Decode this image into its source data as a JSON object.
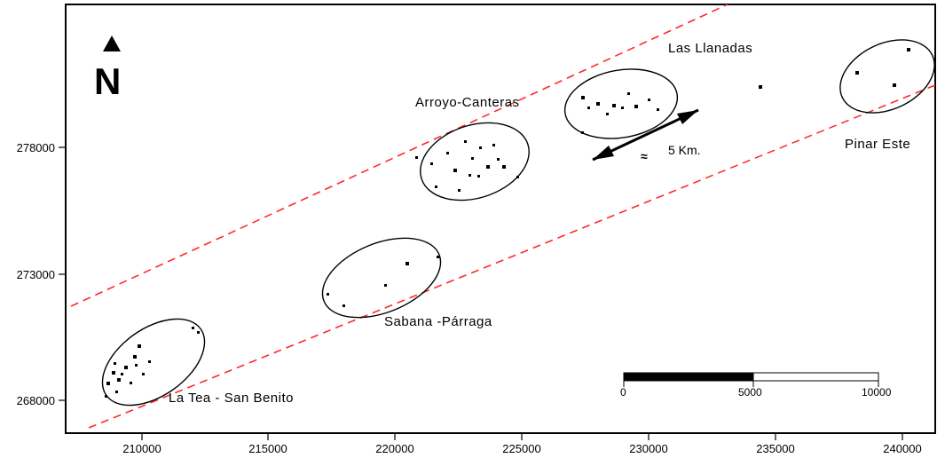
{
  "map": {
    "x_ticks": [
      "210000",
      "215000",
      "220000",
      "225000",
      "230000",
      "235000",
      "240000"
    ],
    "y_ticks": [
      "278000",
      "273000",
      "268000"
    ],
    "north_arrow": {
      "label": "N",
      "icon": "north-arrow-icon"
    },
    "sites": [
      {
        "name": "Las Llanadas"
      },
      {
        "name": "Arroyo-Canteras"
      },
      {
        "name": "Pinar Este"
      },
      {
        "name": "Sabana -Párraga"
      },
      {
        "name": "La Tea - San Benito"
      }
    ],
    "distance_marker": {
      "symbol": "≈",
      "label": "5 Km."
    },
    "scale_bar": {
      "labels": [
        "0",
        "5000",
        "10000"
      ]
    },
    "colors": {
      "frame": "#000000",
      "band_line": "#ff2a2a",
      "background": "#ffffff"
    }
  }
}
